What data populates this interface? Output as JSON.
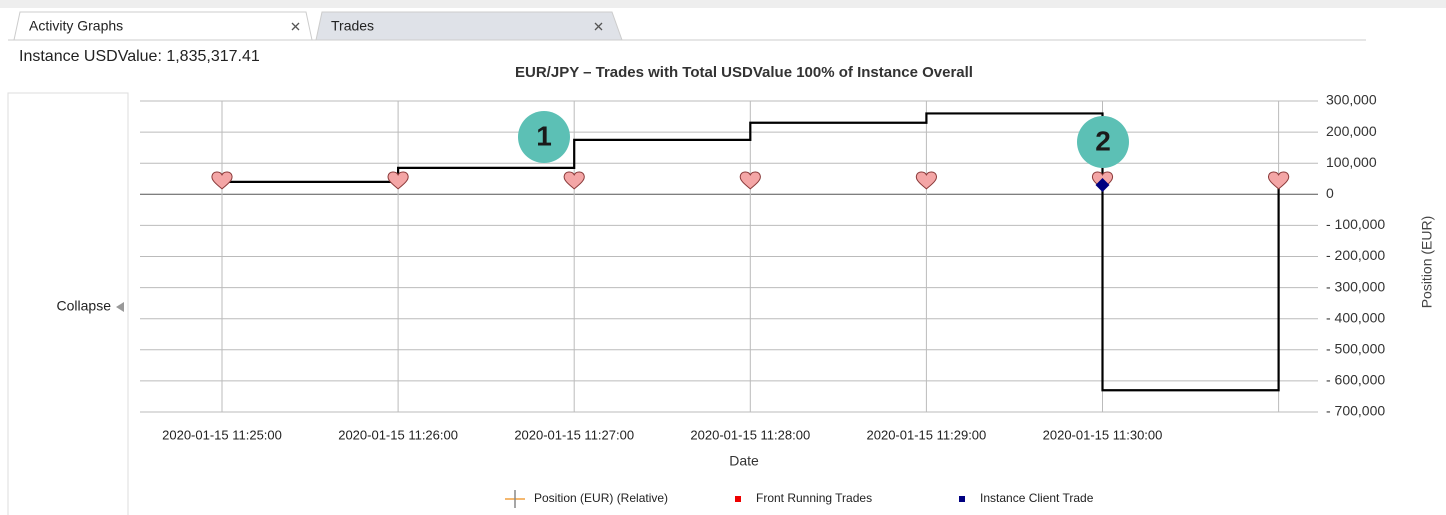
{
  "tabs": [
    "Activity Graphs",
    "Trades"
  ],
  "instance_label": "Instance USDValue: 1,835,317.41",
  "collapse": "Collapse",
  "chart_data": {
    "type": "line",
    "title": "EUR/JPY – Trades with Total USDValue 100% of Instance Overall",
    "x_label": "Date",
    "y_label": "Position (EUR)",
    "categories": [
      "2020-01-15 11:25:00",
      "2020-01-15 11:26:00",
      "2020-01-15 11:27:00",
      "2020-01-15 11:28:00",
      "2020-01-15 11:29:00",
      "2020-01-15 11:30:00",
      null
    ],
    "series": [
      {
        "name": "Position (EUR) (Relative)",
        "color": "#000000",
        "values": [
          40000,
          85000,
          175000,
          230000,
          260000,
          -630000,
          40000
        ]
      },
      {
        "name": "Front Running Trades",
        "color": "#f4a6a6",
        "values": [
          40000,
          40000,
          40000,
          40000,
          40000,
          40000,
          40000
        ]
      },
      {
        "name": "Instance Client Trade",
        "color": "#000080",
        "values": [
          null,
          null,
          null,
          null,
          null,
          30000,
          null
        ]
      }
    ],
    "ylim": [
      -700000,
      300000
    ],
    "yticks": [
      {
        "value": 300000,
        "label": "300,000"
      },
      {
        "value": 200000,
        "label": "200,000"
      },
      {
        "value": 100000,
        "label": "100,000"
      },
      0,
      {
        "value": -100000,
        "label": "- 100,000"
      },
      {
        "value": -200000,
        "label": "- 200,000"
      },
      {
        "value": -300000,
        "label": "- 300,000"
      },
      {
        "value": -400000,
        "label": "- 400,000"
      },
      {
        "value": -500000,
        "label": "- 500,000"
      },
      {
        "value": -600000,
        "label": "- 600,000"
      },
      {
        "value": -700000,
        "label": "- 700,000"
      }
    ],
    "grid": true,
    "annotations": [
      "1",
      "2"
    ]
  }
}
